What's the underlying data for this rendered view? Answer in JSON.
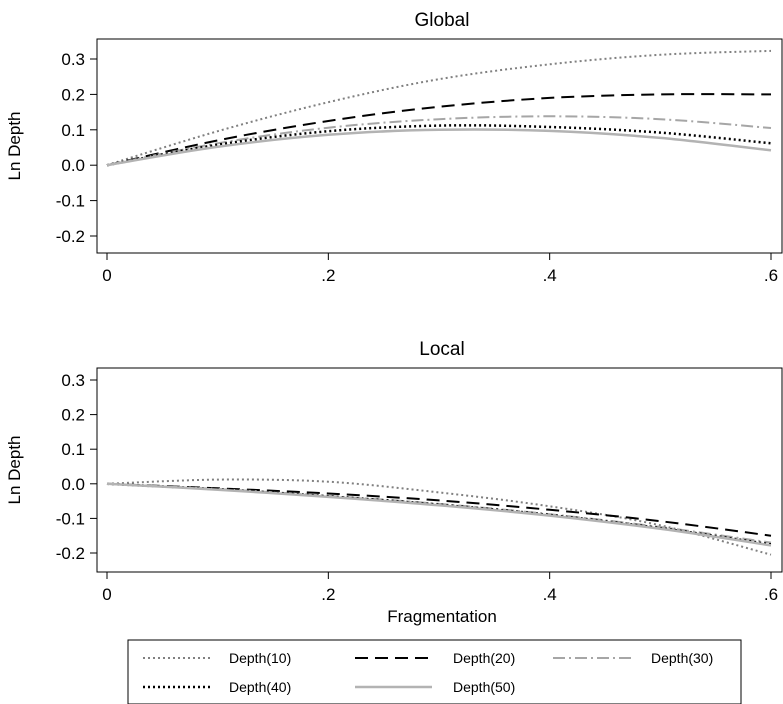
{
  "chart_data": [
    {
      "type": "line",
      "title": "Global",
      "xlabel": "",
      "ylabel": "Ln Depth",
      "xlim": [
        0,
        0.6
      ],
      "ylim": [
        -0.2,
        0.3
      ],
      "x_ticks": [
        "0",
        ".2",
        ".4",
        ".6"
      ],
      "y_ticks": [
        "-0.2",
        "-0.1",
        "0.0",
        "0.1",
        "0.2",
        "0.3"
      ],
      "x": [
        0,
        0.1,
        0.2,
        0.3,
        0.4,
        0.5,
        0.6
      ],
      "series": [
        {
          "name": "Depth(10)",
          "values": [
            0,
            0.096,
            0.178,
            0.243,
            0.285,
            0.312,
            0.323
          ],
          "color": "#808080",
          "dash": "dotted"
        },
        {
          "name": "Depth(20)",
          "values": [
            0,
            0.07,
            0.125,
            0.165,
            0.19,
            0.2,
            0.2
          ],
          "color": "#000000",
          "dash": "dashed"
        },
        {
          "name": "Depth(30)",
          "values": [
            0,
            0.062,
            0.106,
            0.13,
            0.138,
            0.13,
            0.105
          ],
          "color": "#a6a6a6",
          "dash": "dashdot"
        },
        {
          "name": "Depth(40)",
          "values": [
            0,
            0.058,
            0.096,
            0.112,
            0.108,
            0.092,
            0.062
          ],
          "color": "#000000",
          "dash": "dotted"
        },
        {
          "name": "Depth(50)",
          "values": [
            0,
            0.052,
            0.086,
            0.1,
            0.097,
            0.077,
            0.042
          ],
          "color": "#b3b3b3",
          "dash": "solid"
        }
      ],
      "legend": "bottom",
      "grid": false
    },
    {
      "type": "line",
      "title": "Local",
      "xlabel": "Fragmentation",
      "ylabel": "Ln Depth",
      "xlim": [
        0,
        0.6
      ],
      "ylim": [
        -0.2,
        0.3
      ],
      "x_ticks": [
        "0",
        ".2",
        ".4",
        ".6"
      ],
      "y_ticks": [
        "-0.2",
        "-0.1",
        "0.0",
        "0.1",
        "0.2",
        "0.3"
      ],
      "x": [
        0,
        0.1,
        0.2,
        0.3,
        0.4,
        0.5,
        0.6
      ],
      "series": [
        {
          "name": "Depth(10)",
          "values": [
            0,
            0.012,
            0.006,
            -0.025,
            -0.065,
            -0.12,
            -0.205
          ],
          "color": "#808080",
          "dash": "dotted"
        },
        {
          "name": "Depth(20)",
          "values": [
            0,
            -0.013,
            -0.028,
            -0.048,
            -0.075,
            -0.108,
            -0.15
          ],
          "color": "#000000",
          "dash": "dashed"
        },
        {
          "name": "Depth(30)",
          "values": [
            0,
            -0.015,
            -0.035,
            -0.058,
            -0.088,
            -0.125,
            -0.17
          ],
          "color": "#a6a6a6",
          "dash": "dashdot"
        },
        {
          "name": "Depth(40)",
          "values": [
            0,
            -0.016,
            -0.036,
            -0.06,
            -0.09,
            -0.128,
            -0.175
          ],
          "color": "#000000",
          "dash": "dotted"
        },
        {
          "name": "Depth(50)",
          "values": [
            0,
            -0.017,
            -0.038,
            -0.062,
            -0.092,
            -0.13,
            -0.178
          ],
          "color": "#b3b3b3",
          "dash": "solid"
        }
      ],
      "legend": "bottom",
      "grid": false
    }
  ],
  "legend": {
    "entries": [
      "Depth(10)",
      "Depth(20)",
      "Depth(30)",
      "Depth(40)",
      "Depth(50)"
    ]
  }
}
